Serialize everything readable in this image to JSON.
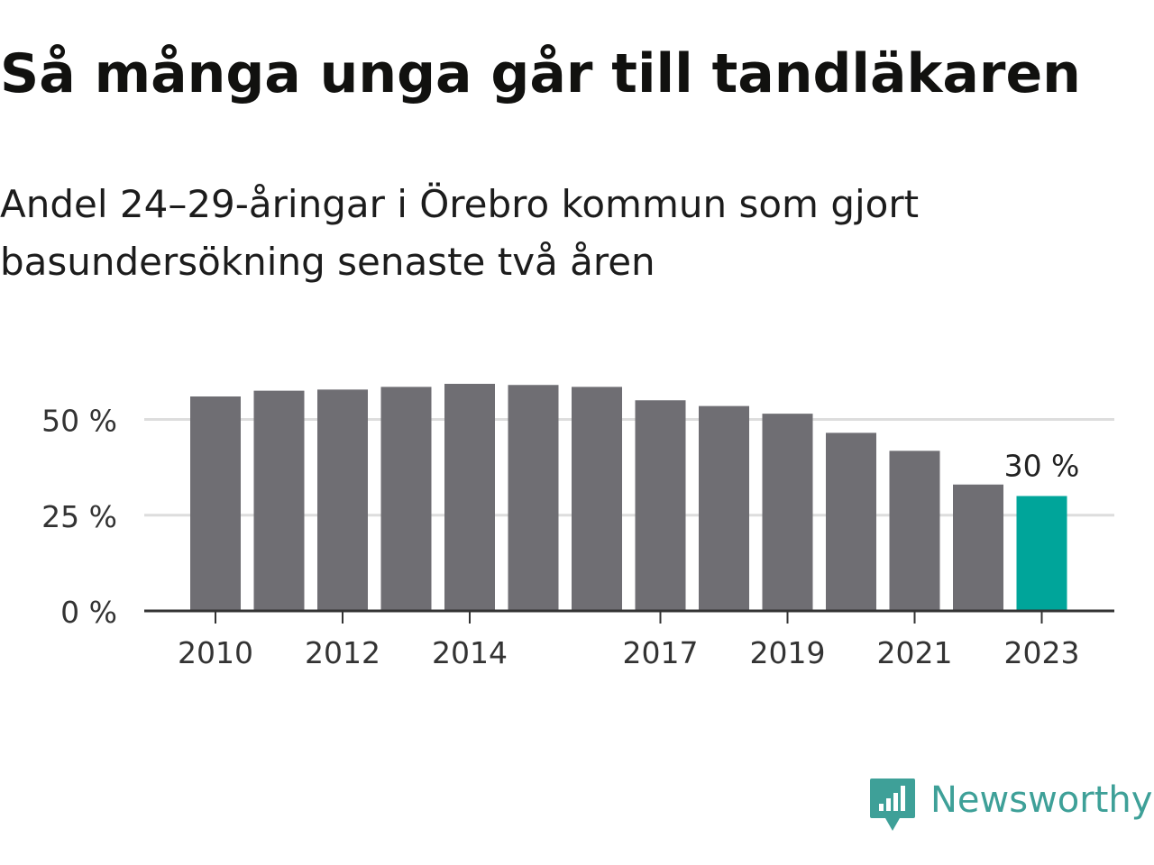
{
  "header": {
    "title": "Så många unga går till tandläkaren",
    "subtitle": "Andel 24–29-åringar i Örebro kommun som gjort basundersökning senaste två åren"
  },
  "brand": {
    "name": "Newsworthy",
    "icon": "newsworthy-logo-icon",
    "color": "#3ea098"
  },
  "colors": {
    "bar": "#6f6e73",
    "highlight": "#00a59a",
    "grid": "#dddddd",
    "axis": "#333333"
  },
  "chart_data": {
    "type": "bar",
    "categories": [
      "2010",
      "2011",
      "2012",
      "2013",
      "2014",
      "2015",
      "2016",
      "2017",
      "2018",
      "2019",
      "2020",
      "2021",
      "2022",
      "2023"
    ],
    "values": [
      56,
      57.5,
      57.8,
      58.5,
      59.3,
      59,
      58.5,
      55,
      53.5,
      51.5,
      46.5,
      41.8,
      33,
      30
    ],
    "x_tick_labels": [
      "2010",
      "2012",
      "2014",
      "2017",
      "2019",
      "2021",
      "2023"
    ],
    "y_ticks": [
      0,
      25,
      50
    ],
    "y_tick_labels": [
      "0 %",
      "25 %",
      "50 %"
    ],
    "ylim": [
      0,
      62
    ],
    "highlight_category": "2023",
    "annotation": {
      "category": "2023",
      "text": "30 %"
    },
    "title": "Så många unga går till tandläkaren",
    "subtitle": "Andel 24–29-åringar i Örebro kommun som gjort basundersökning senaste två åren",
    "xlabel": "",
    "ylabel": "",
    "grid": true,
    "legend": "none"
  }
}
